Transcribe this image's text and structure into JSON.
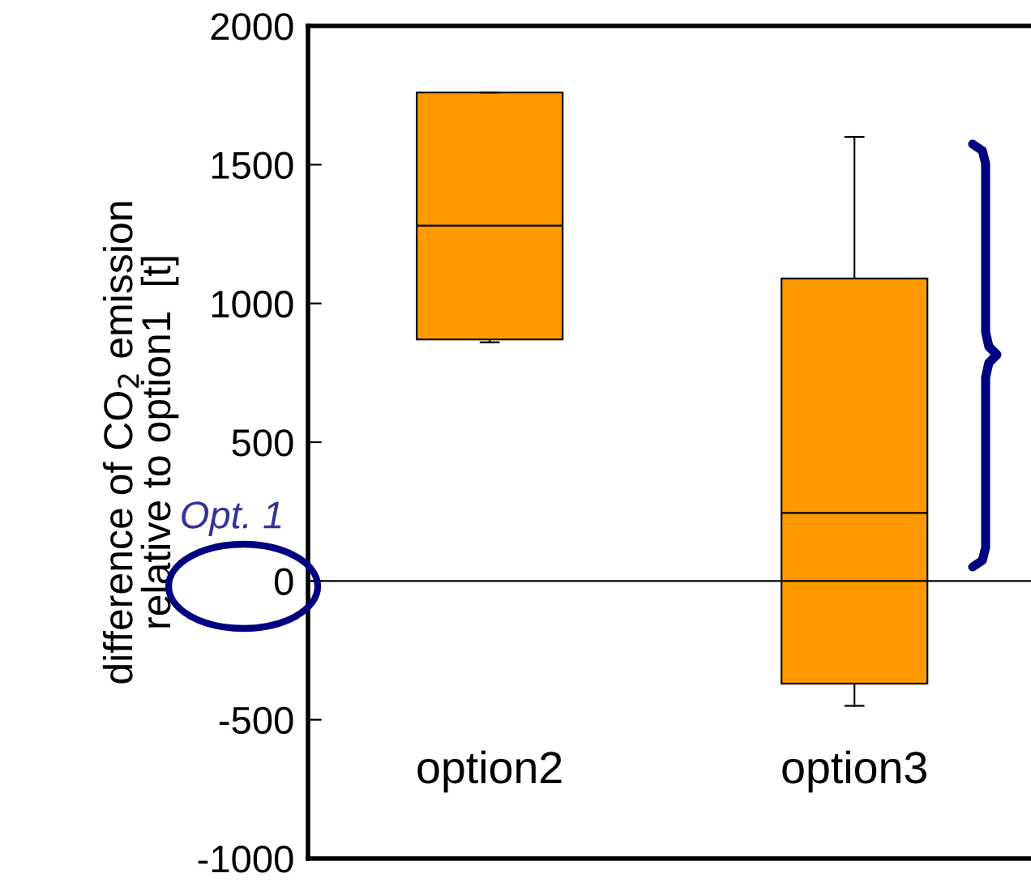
{
  "chart_data": {
    "type": "box",
    "ylabel": "difference of CO$_{2}$ emission\nrelative to option1  [t]",
    "categories": [
      "option2",
      "option3"
    ],
    "series": [
      {
        "color": "#ff9900",
        "boxes": [
          {
            "low": 860,
            "q1": 870,
            "median": 1280,
            "q3": 1760,
            "high": 1760
          },
          {
            "low": -450,
            "q1": -370,
            "median": 245,
            "q3": 1090,
            "high": 1600
          }
        ]
      }
    ],
    "ylim": [
      -1000,
      2000
    ],
    "yticks": [
      -1000,
      -500,
      0,
      500,
      1000,
      1500,
      2000
    ],
    "ref_lines": [
      {
        "axis": "y",
        "value": 0,
        "color": "#000000"
      }
    ],
    "annotations": [
      "Opt. 1"
    ]
  }
}
